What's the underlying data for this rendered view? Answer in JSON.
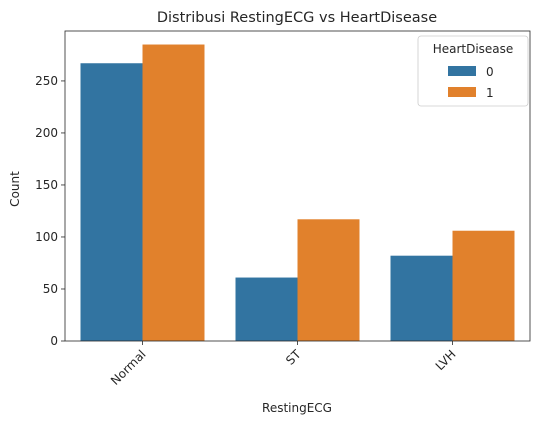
{
  "chart_data": {
    "type": "bar",
    "title": "Distribusi RestingECG vs HeartDisease",
    "xlabel": "RestingECG",
    "ylabel": "Count",
    "categories": [
      "Normal",
      "ST",
      "LVH"
    ],
    "series": [
      {
        "name": "0",
        "values": [
          267,
          61,
          82
        ],
        "color": "#3274a1"
      },
      {
        "name": "1",
        "values": [
          285,
          117,
          106
        ],
        "color": "#e1812c"
      }
    ],
    "ylim": [
      0,
      298
    ],
    "yticks": [
      0,
      50,
      100,
      150,
      200,
      250
    ],
    "legend": {
      "title": "HeartDisease",
      "placement": "top-right"
    },
    "grid": false
  }
}
